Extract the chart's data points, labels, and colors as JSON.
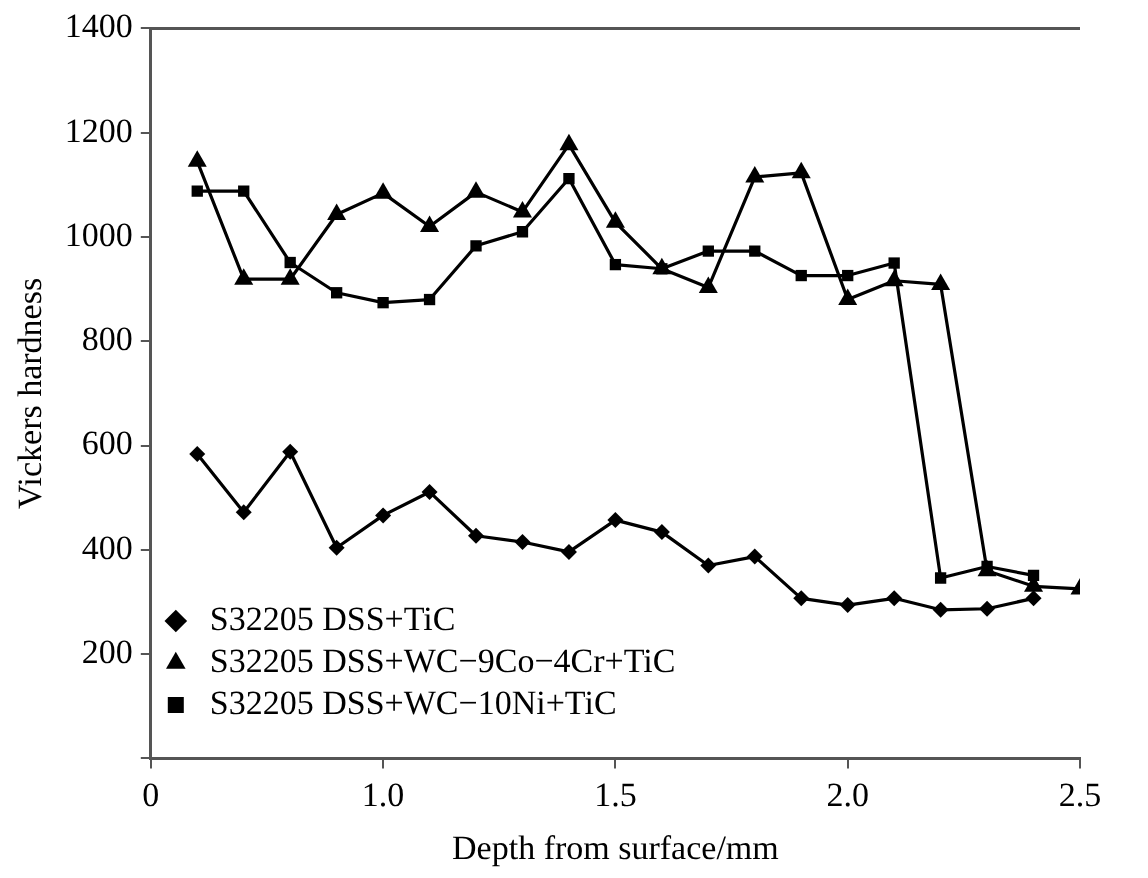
{
  "chart_data": {
    "type": "line",
    "xlabel": "Depth from surface/mm",
    "ylabel": "Vickers hardness",
    "xlim": [
      0.5,
      2.5
    ],
    "xticks": [
      {
        "value": 0.5,
        "label": "0"
      },
      {
        "value": 1.0,
        "label": "1.0"
      },
      {
        "value": 1.5,
        "label": "1.5"
      },
      {
        "value": 2.0,
        "label": "2.0"
      },
      {
        "value": 2.5,
        "label": "2.5"
      }
    ],
    "ylim": [
      0,
      1400
    ],
    "yticks": [
      {
        "value": 0,
        "label": null
      },
      200,
      400,
      600,
      800,
      1000,
      1200,
      1400
    ],
    "grid": false,
    "legend": "bottom left",
    "line_style": "solid",
    "series": [
      {
        "name": "S32205 DSS+TiC",
        "color": "#000000",
        "marker": "diamond",
        "x": [
          0.6,
          0.7,
          0.8,
          0.9,
          1.0,
          1.1,
          1.2,
          1.3,
          1.4,
          1.5,
          1.6,
          1.7,
          1.8,
          1.9,
          2.0,
          2.1,
          2.2,
          2.3,
          2.4
        ],
        "values": [
          584,
          472,
          588,
          404,
          466,
          511,
          427,
          415,
          396,
          457,
          434,
          370,
          387,
          307,
          294,
          307,
          285,
          287,
          307
        ]
      },
      {
        "name": "S32205 DSS+WC−9Co−4Cr+TiC",
        "color": "#000000",
        "marker": "triangle",
        "x": [
          0.6,
          0.7,
          0.8,
          0.9,
          1.0,
          1.1,
          1.2,
          1.3,
          1.4,
          1.5,
          1.6,
          1.7,
          1.8,
          1.9,
          2.0,
          2.1,
          2.2,
          2.3,
          2.4,
          2.5
        ],
        "values": [
          1145,
          919,
          919,
          1043,
          1084,
          1020,
          1086,
          1048,
          1177,
          1028,
          939,
          903,
          1115,
          1123,
          880,
          916,
          909,
          360,
          330,
          325
        ]
      },
      {
        "name": "S32205 DSS+WC−10Ni+TiC",
        "color": "#000000",
        "marker": "square",
        "x": [
          0.6,
          0.7,
          0.8,
          0.9,
          1.0,
          1.1,
          1.2,
          1.3,
          1.4,
          1.5,
          1.6,
          1.7,
          1.8,
          1.9,
          2.0,
          2.1,
          2.2,
          2.3,
          2.4
        ],
        "values": [
          1088,
          1088,
          951,
          893,
          874,
          880,
          983,
          1010,
          1112,
          947,
          939,
          973,
          973,
          926,
          926,
          950,
          346,
          368,
          351
        ]
      }
    ]
  }
}
